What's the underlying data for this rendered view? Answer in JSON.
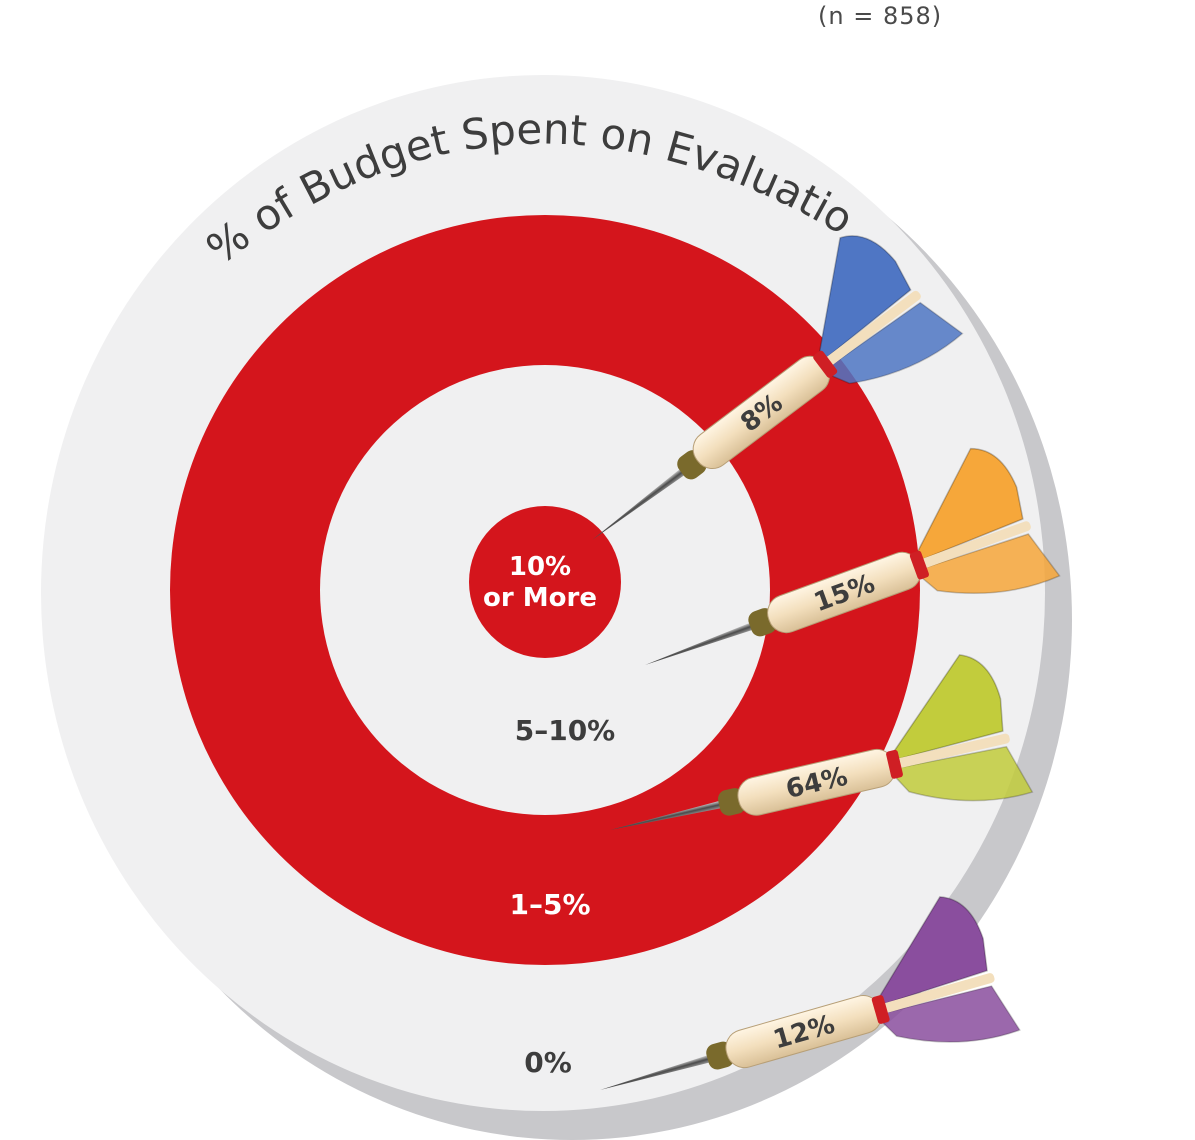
{
  "sample_note": "(n = 858)",
  "chart_data": {
    "type": "pie",
    "title": "% of Budget Spent on Evaluation",
    "categories": [
      "10% or More",
      "5–10%",
      "1–5%",
      "0%"
    ],
    "values": [
      8,
      15,
      64,
      12
    ],
    "value_labels": [
      "8%",
      "15%",
      "64%",
      "12%"
    ],
    "ring_labels": [
      {
        "line1": "10%",
        "line2": "or More"
      },
      {
        "line1": "5–10%",
        "line2": ""
      },
      {
        "line1": "1–5%",
        "line2": ""
      },
      {
        "line1": "0%",
        "line2": ""
      }
    ],
    "style": "bullseye with darts",
    "colors": {
      "ring_red": "#d4151c",
      "ring_light": "#f0f0f1",
      "dart_blue": "#4f76c4",
      "dart_orange": "#f6a73a",
      "dart_yellow_green": "#c2cc3c",
      "dart_purple": "#8a4e9e",
      "dart_shaft": "#f3dfbd"
    }
  }
}
